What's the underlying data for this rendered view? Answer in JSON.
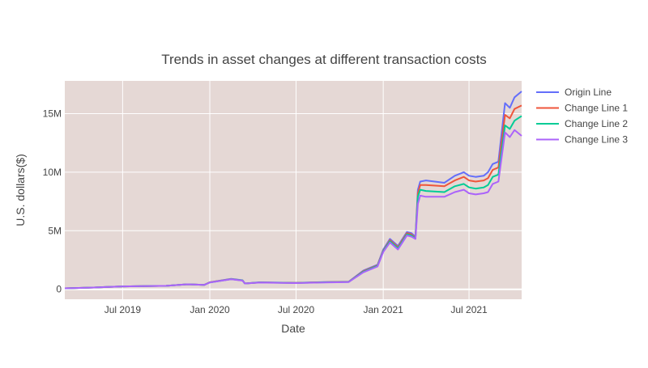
{
  "colors": {
    "plot_bg": "#e5d8d5",
    "grid": "#ffffff",
    "text": "#444444",
    "title": "#444444"
  },
  "chart_data": {
    "type": "line",
    "title": "Trends in asset changes at different transaction costs",
    "xlabel": "Date",
    "ylabel": "U.S. dollars($)",
    "x_range": [
      "2019-03-01",
      "2021-10-20"
    ],
    "y_range": [
      -850000,
      17800000
    ],
    "x_ticks": [
      {
        "date": "2019-07-01",
        "label": "Jul 2019"
      },
      {
        "date": "2020-01-01",
        "label": "Jan 2020"
      },
      {
        "date": "2020-07-01",
        "label": "Jul 2020"
      },
      {
        "date": "2021-01-01",
        "label": "Jan 2021"
      },
      {
        "date": "2021-07-01",
        "label": "Jul 2021"
      }
    ],
    "y_ticks": [
      {
        "value": 0,
        "label": "0"
      },
      {
        "value": 5000000,
        "label": "5M"
      },
      {
        "value": 10000000,
        "label": "10M"
      },
      {
        "value": 15000000,
        "label": "15M"
      }
    ],
    "legend_position": "right",
    "series": [
      {
        "name": "Origin Line",
        "color": "#636efa",
        "x": [
          "2019-03-01",
          "2019-05-01",
          "2019-07-01",
          "2019-10-01",
          "2019-11-15",
          "2019-12-20",
          "2020-01-01",
          "2020-02-15",
          "2020-03-10",
          "2020-03-15",
          "2020-04-15",
          "2020-07-01",
          "2020-09-01",
          "2020-10-20",
          "2020-11-20",
          "2020-12-20",
          "2021-01-01",
          "2021-01-15",
          "2021-02-01",
          "2021-02-20",
          "2021-03-01",
          "2021-03-10",
          "2021-03-15",
          "2021-03-20",
          "2021-04-01",
          "2021-05-10",
          "2021-06-01",
          "2021-06-20",
          "2021-07-01",
          "2021-07-15",
          "2021-08-01",
          "2021-08-10",
          "2021-08-20",
          "2021-09-01",
          "2021-09-15",
          "2021-09-25",
          "2021-10-05",
          "2021-10-20"
        ],
        "y": [
          80000,
          150000,
          250000,
          300000,
          430000,
          370000,
          600000,
          900000,
          770000,
          500000,
          600000,
          550000,
          620000,
          650000,
          1600000,
          2100000,
          3400000,
          4300000,
          3700000,
          4900000,
          4800000,
          4500000,
          8500000,
          9200000,
          9300000,
          9100000,
          9700000,
          10000000,
          9700000,
          9600000,
          9700000,
          10000000,
          10700000,
          10900000,
          15900000,
          15500000,
          16400000,
          16900000
        ]
      },
      {
        "name": "Change Line 1",
        "color": "#ef553b",
        "x": [
          "2019-03-01",
          "2019-05-01",
          "2019-07-01",
          "2019-10-01",
          "2019-11-15",
          "2019-12-20",
          "2020-01-01",
          "2020-02-15",
          "2020-03-10",
          "2020-03-15",
          "2020-04-15",
          "2020-07-01",
          "2020-09-01",
          "2020-10-20",
          "2020-11-20",
          "2020-12-20",
          "2021-01-01",
          "2021-01-15",
          "2021-02-01",
          "2021-02-20",
          "2021-03-01",
          "2021-03-10",
          "2021-03-15",
          "2021-03-20",
          "2021-04-01",
          "2021-05-10",
          "2021-06-01",
          "2021-06-20",
          "2021-07-01",
          "2021-07-15",
          "2021-08-01",
          "2021-08-10",
          "2021-08-20",
          "2021-09-01",
          "2021-09-15",
          "2021-09-25",
          "2021-10-05",
          "2021-10-20"
        ],
        "y": [
          80000,
          150000,
          250000,
          300000,
          430000,
          370000,
          600000,
          880000,
          760000,
          500000,
          590000,
          550000,
          610000,
          640000,
          1550000,
          2050000,
          3300000,
          4200000,
          3600000,
          4800000,
          4700000,
          4400000,
          8200000,
          8900000,
          8900000,
          8800000,
          9300000,
          9600000,
          9300000,
          9200000,
          9300000,
          9500000,
          10200000,
          10400000,
          14900000,
          14600000,
          15400000,
          15700000
        ]
      },
      {
        "name": "Change Line 2",
        "color": "#00cc96",
        "x": [
          "2019-03-01",
          "2019-05-01",
          "2019-07-01",
          "2019-10-01",
          "2019-11-15",
          "2019-12-20",
          "2020-01-01",
          "2020-02-15",
          "2020-03-10",
          "2020-03-15",
          "2020-04-15",
          "2020-07-01",
          "2020-09-01",
          "2020-10-20",
          "2020-11-20",
          "2020-12-20",
          "2021-01-01",
          "2021-01-15",
          "2021-02-01",
          "2021-02-20",
          "2021-03-01",
          "2021-03-10",
          "2021-03-15",
          "2021-03-20",
          "2021-04-01",
          "2021-05-10",
          "2021-06-01",
          "2021-06-20",
          "2021-07-01",
          "2021-07-15",
          "2021-08-01",
          "2021-08-10",
          "2021-08-20",
          "2021-09-01",
          "2021-09-15",
          "2021-09-25",
          "2021-10-05",
          "2021-10-20"
        ],
        "y": [
          80000,
          150000,
          250000,
          300000,
          430000,
          370000,
          590000,
          870000,
          750000,
          500000,
          580000,
          540000,
          600000,
          630000,
          1500000,
          2000000,
          3250000,
          4100000,
          3500000,
          4700000,
          4600000,
          4350000,
          7900000,
          8500000,
          8400000,
          8300000,
          8800000,
          9000000,
          8700000,
          8600000,
          8700000,
          8900000,
          9600000,
          9800000,
          14000000,
          13700000,
          14400000,
          14800000
        ]
      },
      {
        "name": "Change Line 3",
        "color": "#ab63fa",
        "x": [
          "2019-03-01",
          "2019-05-01",
          "2019-07-01",
          "2019-10-01",
          "2019-11-15",
          "2019-12-20",
          "2020-01-01",
          "2020-02-15",
          "2020-03-10",
          "2020-03-15",
          "2020-04-15",
          "2020-07-01",
          "2020-09-01",
          "2020-10-20",
          "2020-11-20",
          "2020-12-20",
          "2021-01-01",
          "2021-01-15",
          "2021-02-01",
          "2021-02-20",
          "2021-03-01",
          "2021-03-10",
          "2021-03-15",
          "2021-03-20",
          "2021-04-01",
          "2021-05-10",
          "2021-06-01",
          "2021-06-20",
          "2021-07-01",
          "2021-07-15",
          "2021-08-01",
          "2021-08-10",
          "2021-08-20",
          "2021-09-01",
          "2021-09-15",
          "2021-09-25",
          "2021-10-05",
          "2021-10-20"
        ],
        "y": [
          80000,
          150000,
          250000,
          300000,
          430000,
          370000,
          580000,
          860000,
          740000,
          500000,
          570000,
          530000,
          590000,
          620000,
          1450000,
          1950000,
          3200000,
          4000000,
          3400000,
          4600000,
          4500000,
          4300000,
          7300000,
          8000000,
          7900000,
          7900000,
          8300000,
          8500000,
          8200000,
          8100000,
          8200000,
          8300000,
          9000000,
          9200000,
          13400000,
          13000000,
          13600000,
          13100000
        ]
      }
    ]
  }
}
